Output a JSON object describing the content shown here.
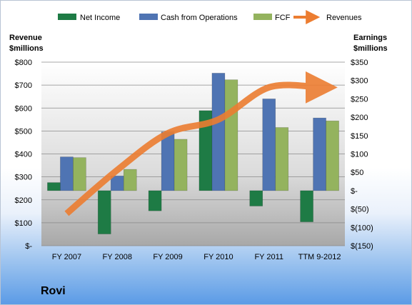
{
  "chart_data": {
    "type": "bar",
    "company": "Rovi",
    "categories": [
      "FY 2007",
      "FY 2008",
      "FY 2009",
      "FY 2010",
      "FY 2011",
      "TTM 9-2012"
    ],
    "left_axis": {
      "title_line1": "Revenue",
      "title_line2": "$millions",
      "ticks": [
        "$-",
        "$100",
        "$200",
        "$300",
        "$400",
        "$500",
        "$600",
        "$700",
        "$800"
      ],
      "range": [
        0,
        800
      ]
    },
    "right_axis": {
      "title_line1": "Earnings",
      "title_line2": "$millions",
      "ticks": [
        "$(150)",
        "$(100)",
        "$(50)",
        "$-",
        "$50",
        "$100",
        "$150",
        "$200",
        "$250",
        "$300",
        "$350"
      ],
      "range": [
        -150,
        350
      ]
    },
    "series": [
      {
        "name": "Net Income",
        "axis": "right",
        "color": "#1e7b45",
        "values": [
          22,
          -118,
          -55,
          218,
          -42,
          -85
        ]
      },
      {
        "name": "Cash from Operations",
        "axis": "right",
        "color": "#4f74b3",
        "values": [
          92,
          40,
          160,
          320,
          250,
          198
        ]
      },
      {
        "name": "FCF",
        "axis": "right",
        "color": "#94b35e",
        "values": [
          90,
          58,
          140,
          302,
          172,
          190
        ]
      }
    ],
    "line_series": {
      "name": "Revenues",
      "axis": "left",
      "color": "#ec7d31",
      "values": [
        140,
        330,
        490,
        550,
        690,
        690
      ]
    },
    "grid": true,
    "legend": "top"
  }
}
